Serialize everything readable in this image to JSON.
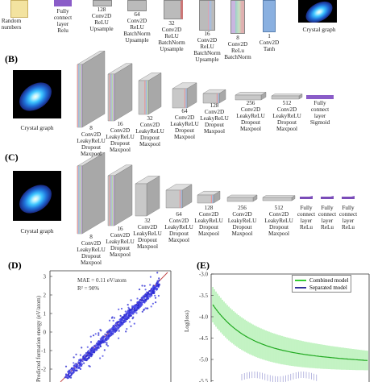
{
  "panelA": {
    "captions": [
      {
        "id": "random",
        "lines": [
          "Random",
          "numbers"
        ]
      },
      {
        "id": "fc",
        "lines": [
          "Fully",
          "connect",
          "layer",
          "Relu"
        ]
      },
      {
        "id": "c128",
        "lines": [
          "128",
          "Conv2D",
          "ReLU",
          "Upsample"
        ]
      },
      {
        "id": "c64",
        "lines": [
          "64",
          "Conv2D",
          "ReLU",
          "BatchNorm",
          "Upsample"
        ]
      },
      {
        "id": "c32",
        "lines": [
          "32",
          "Conv2D",
          "ReLU",
          "BatchNorm",
          "Upsample"
        ]
      },
      {
        "id": "c16",
        "lines": [
          "16",
          "Conv2D",
          "ReLU",
          "BatchNorm",
          "Upsample"
        ]
      },
      {
        "id": "c8",
        "lines": [
          "8",
          "Conv2D",
          "ReLu",
          "BatchNorm"
        ]
      },
      {
        "id": "c1",
        "lines": [
          "1",
          "Conv2D",
          "Tanh"
        ]
      }
    ],
    "crystal_label": "Crystal graph"
  },
  "panelB": {
    "label": "(B)",
    "crystal_label": "Crystal graph",
    "captions": [
      {
        "id": "b8",
        "lines": [
          "8",
          "Conv2D",
          "LeakyReLU",
          "Dropout",
          "Maxpool"
        ]
      },
      {
        "id": "b16",
        "lines": [
          "16",
          "Conv2D",
          "LeakyReLU",
          "Dropout",
          "Maxpool"
        ]
      },
      {
        "id": "b32",
        "lines": [
          "32",
          "Conv2D",
          "LeakyReLU",
          "Dropout",
          "Maxpool"
        ]
      },
      {
        "id": "b64",
        "lines": [
          "64",
          "Conv2D",
          "LeakyReLU",
          "Dropout",
          "Maxpool"
        ]
      },
      {
        "id": "b128",
        "lines": [
          "128",
          "Conv2D",
          "LeakyReLU",
          "Dropout",
          "Maxpool"
        ]
      },
      {
        "id": "b256",
        "lines": [
          "256",
          "Conv2D",
          "LeakyReLU",
          "Dropout",
          "Maxpool"
        ]
      },
      {
        "id": "b512",
        "lines": [
          "512",
          "Conv2D",
          "LeakyReLU",
          "Dropout",
          "Maxpool"
        ]
      },
      {
        "id": "bfc",
        "lines": [
          "Fully",
          "connect",
          "layer",
          "Sigmoid"
        ]
      }
    ]
  },
  "panelC": {
    "label": "(C)",
    "crystal_label": "Crystal graph",
    "captions": [
      {
        "id": "c8",
        "lines": [
          "8",
          "Conv2D",
          "LeakyReLU",
          "Dropout",
          "Maxpool"
        ]
      },
      {
        "id": "c16",
        "lines": [
          "16",
          "Conv2D",
          "LeakyReLU",
          "Dropout",
          "Maxpool"
        ]
      },
      {
        "id": "c32",
        "lines": [
          "32",
          "Conv2D",
          "LeakyReLU",
          "Dropout",
          "Maxpool"
        ]
      },
      {
        "id": "c64",
        "lines": [
          "64",
          "Conv2D",
          "LeakyReLU",
          "Dropout",
          "Maxpool"
        ]
      },
      {
        "id": "c128",
        "lines": [
          "128",
          "Conv2D",
          "LeakyReLU",
          "Dropout",
          "Maxpool"
        ]
      },
      {
        "id": "c256",
        "lines": [
          "256",
          "Conv2D",
          "LeakyReLU",
          "Dropout",
          "Maxpool"
        ]
      },
      {
        "id": "c512",
        "lines": [
          "512",
          "Conv2D",
          "LeakyReLU",
          "Dropout",
          "Maxpool"
        ]
      },
      {
        "id": "cfc1",
        "lines": [
          "Fully",
          "connect",
          "layer",
          "ReLu"
        ]
      },
      {
        "id": "cfc2",
        "lines": [
          "Fully",
          "connect",
          "layer",
          "ReLu"
        ]
      },
      {
        "id": "cfc3",
        "lines": [
          "Fully",
          "connect",
          "layer",
          "ReLu"
        ]
      }
    ]
  },
  "panelD": {
    "label": "(D)",
    "ylabel": "Predicted formation energy (eV/atom)",
    "yticks": [
      "3",
      "2",
      "1",
      "0",
      "-1",
      "-2"
    ],
    "mae": "MAE = 0.11 eV/atom",
    "r2": "R² = 90%"
  },
  "panelE": {
    "label": "(E)",
    "ylabel": "Log(loss)",
    "yticks": [
      "-3.0",
      "-3.5",
      "-4.0",
      "-4.5",
      "-5.0",
      "-5.5"
    ],
    "legend": [
      "Combined model",
      "Separated model"
    ],
    "colors": {
      "combined": "#33cc33",
      "separated": "#333399"
    }
  }
}
